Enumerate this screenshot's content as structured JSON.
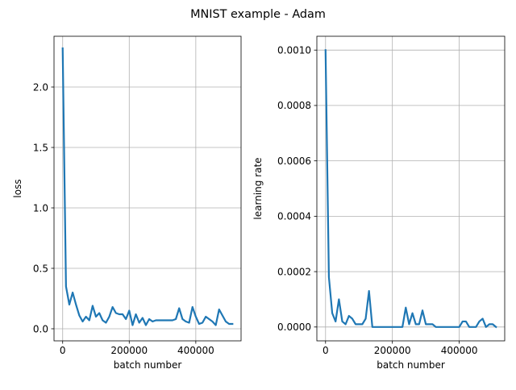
{
  "figure": {
    "title": "MNIST example - Adam"
  },
  "chart_data": [
    {
      "type": "line",
      "title": "",
      "xlabel": "batch number",
      "ylabel": "loss",
      "xlim": [
        -26000,
        536000
      ],
      "ylim": [
        -0.1,
        2.42
      ],
      "xticks": [
        0,
        200000,
        400000
      ],
      "xtick_labels": [
        "0",
        "200000",
        "400000"
      ],
      "yticks": [
        0.0,
        0.5,
        1.0,
        1.5,
        2.0
      ],
      "ytick_labels": [
        "0.0",
        "0.5",
        "1.0",
        "1.5",
        "2.0"
      ],
      "grid": true,
      "color": "#1f77b4",
      "x": [
        0,
        10000,
        20000,
        30000,
        40000,
        50000,
        60000,
        70000,
        80000,
        90000,
        100000,
        110000,
        120000,
        130000,
        140000,
        150000,
        160000,
        170000,
        180000,
        190000,
        200000,
        210000,
        220000,
        230000,
        240000,
        250000,
        260000,
        270000,
        280000,
        290000,
        300000,
        310000,
        320000,
        330000,
        340000,
        350000,
        360000,
        370000,
        380000,
        390000,
        400000,
        410000,
        420000,
        430000,
        440000,
        450000,
        460000,
        470000,
        480000,
        490000,
        500000,
        510000
      ],
      "y": [
        2.32,
        0.35,
        0.2,
        0.3,
        0.2,
        0.11,
        0.06,
        0.1,
        0.07,
        0.19,
        0.1,
        0.13,
        0.07,
        0.05,
        0.1,
        0.18,
        0.13,
        0.12,
        0.12,
        0.08,
        0.15,
        0.03,
        0.12,
        0.05,
        0.09,
        0.03,
        0.08,
        0.06,
        0.07,
        0.07,
        0.07,
        0.07,
        0.07,
        0.07,
        0.08,
        0.17,
        0.08,
        0.06,
        0.05,
        0.18,
        0.1,
        0.04,
        0.05,
        0.1,
        0.08,
        0.06,
        0.03,
        0.16,
        0.11,
        0.06,
        0.04,
        0.04
      ]
    },
    {
      "type": "line",
      "title": "",
      "xlabel": "batch number",
      "ylabel": "learning rate",
      "xlim": [
        -26000,
        536000
      ],
      "ylim": [
        -5e-05,
        0.00105
      ],
      "xticks": [
        0,
        200000,
        400000
      ],
      "xtick_labels": [
        "0",
        "200000",
        "400000"
      ],
      "yticks": [
        0.0,
        0.0002,
        0.0004,
        0.0006,
        0.0008,
        0.001
      ],
      "ytick_labels": [
        "0.0000",
        "0.0002",
        "0.0004",
        "0.0006",
        "0.0008",
        "0.0010"
      ],
      "grid": true,
      "color": "#1f77b4",
      "x": [
        0,
        10000,
        20000,
        30000,
        40000,
        50000,
        60000,
        70000,
        80000,
        90000,
        100000,
        110000,
        120000,
        130000,
        140000,
        150000,
        160000,
        170000,
        180000,
        190000,
        200000,
        210000,
        220000,
        230000,
        240000,
        250000,
        260000,
        270000,
        280000,
        290000,
        300000,
        310000,
        320000,
        330000,
        340000,
        350000,
        360000,
        370000,
        380000,
        390000,
        400000,
        410000,
        420000,
        430000,
        440000,
        450000,
        460000,
        470000,
        480000,
        490000,
        500000,
        510000
      ],
      "y": [
        0.001,
        0.00018,
        5e-05,
        2e-05,
        0.0001,
        2e-05,
        1e-05,
        4e-05,
        3e-05,
        1e-05,
        1e-05,
        1e-05,
        3e-05,
        0.00013,
        0.0,
        0.0,
        0.0,
        0.0,
        0.0,
        0.0,
        0.0,
        0.0,
        0.0,
        0.0,
        7e-05,
        1e-05,
        5e-05,
        1e-05,
        1e-05,
        6e-05,
        1e-05,
        1e-05,
        1e-05,
        0.0,
        0.0,
        0.0,
        0.0,
        0.0,
        0.0,
        0.0,
        0.0,
        2e-05,
        2e-05,
        0.0,
        0.0,
        0.0,
        2e-05,
        3e-05,
        0.0,
        1e-05,
        1e-05,
        0.0
      ]
    }
  ]
}
